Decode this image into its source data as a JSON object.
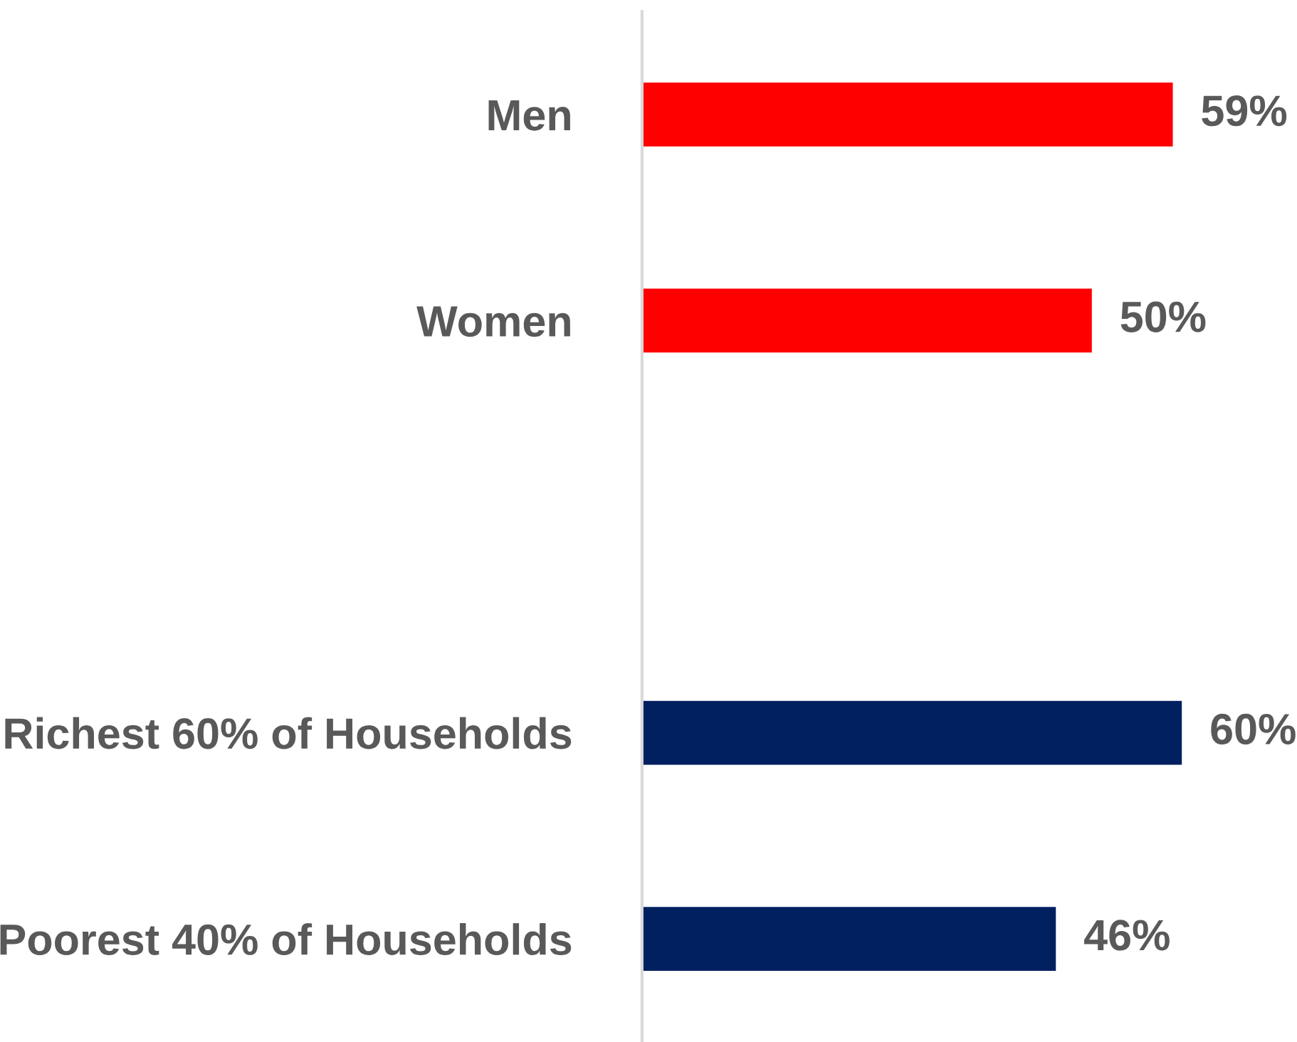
{
  "chart_data": {
    "type": "bar",
    "orientation": "horizontal",
    "categories": [
      "Men",
      "Women",
      null,
      "Richest 60% of Households",
      "Poorest 40% of Households"
    ],
    "values": [
      59,
      50,
      null,
      60,
      46
    ],
    "colors": [
      "#ff0000",
      "#ff0000",
      null,
      "#002060",
      "#002060"
    ],
    "value_labels": [
      "59%",
      "50%",
      null,
      "60%",
      "46%"
    ],
    "tick_labels": "y",
    "grid": false,
    "legend": false
  }
}
